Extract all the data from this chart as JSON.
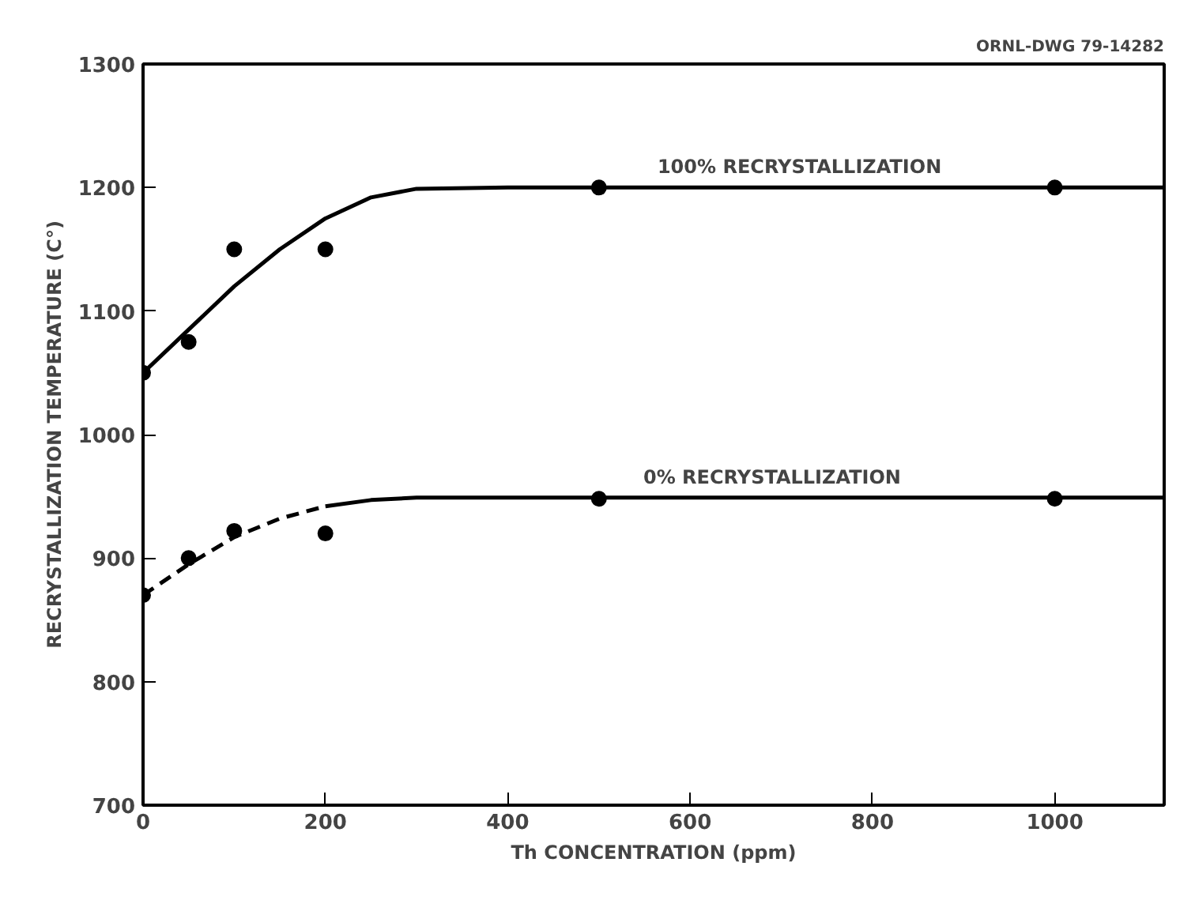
{
  "chart_data": {
    "type": "scatter",
    "xlabel": "Th CONCENTRATION (ppm)",
    "ylabel": "RECRYSTALLIZATION TEMPERATURE (C°)",
    "xlim": [
      0,
      1120
    ],
    "ylim": [
      700,
      1300
    ],
    "xticks": [
      0,
      200,
      400,
      600,
      800,
      1000
    ],
    "yticks": [
      700,
      800,
      900,
      1000,
      1100,
      1200,
      1300
    ],
    "grid": false,
    "marker": "circle",
    "series": [
      {
        "color": "#000000",
        "x": [
          0,
          50,
          100,
          200,
          500,
          1000
        ],
        "values": [
          1050,
          1075,
          1150,
          1150,
          1200,
          1200
        ]
      },
      {
        "type": "line",
        "color": "#000000",
        "line_style": "solid",
        "marker": "none",
        "x": [
          0,
          50,
          100,
          150,
          200,
          250,
          300,
          400,
          1120
        ],
        "values": [
          1050,
          1085,
          1120,
          1150,
          1175,
          1192,
          1199,
          1200,
          1200
        ]
      },
      {
        "color": "#000000",
        "x": [
          0,
          50,
          100,
          200,
          500,
          1000
        ],
        "values": [
          870,
          900,
          922,
          920,
          948,
          948
        ]
      },
      {
        "type": "line",
        "color": "#000000",
        "line_style": "dashed",
        "marker": "none",
        "x": [
          0,
          50,
          100,
          150,
          200
        ],
        "values": [
          870,
          895,
          917,
          932,
          942
        ]
      },
      {
        "type": "line",
        "color": "#000000",
        "line_style": "solid",
        "marker": "none",
        "x": [
          200,
          250,
          300,
          400,
          1120
        ],
        "values": [
          942,
          947,
          949,
          949,
          949
        ]
      }
    ],
    "annotations": [
      {
        "text": "100% RECRYSTALLIZATION",
        "x": 720,
        "y": 1200
      },
      {
        "text": "0% RECRYSTALLIZATION",
        "x": 690,
        "y": 949
      },
      "ORNL-DWG 79-14282"
    ]
  }
}
